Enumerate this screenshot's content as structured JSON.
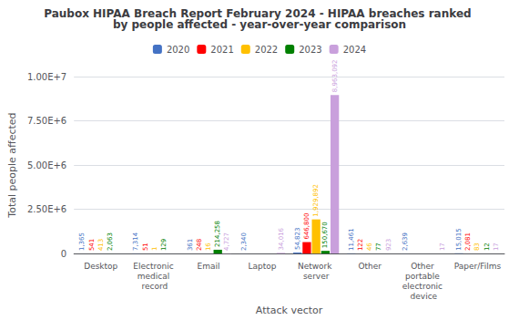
{
  "chart_data": {
    "type": "bar",
    "title": "Paubox HIPAA Breach Report February 2024 - HIPAA breaches ranked by people affected - year-over-year comparison",
    "xlabel": "Attack vector",
    "ylabel": "Total people affected",
    "categories": [
      "Desktop",
      "Electronic medical record",
      "Email",
      "Laptop",
      "Network server",
      "Other",
      "Other portable electronic device",
      "Paper/Films"
    ],
    "series": [
      {
        "name": "2020",
        "color": "#4472C4",
        "values": [
          1365,
          7314,
          361,
          2340,
          54823,
          11461,
          2639,
          15015
        ],
        "value_labels": [
          "1,365",
          "7,314",
          "361",
          "2,340",
          "54,823",
          "11,461",
          "2,639",
          "15,015"
        ]
      },
      {
        "name": "2021",
        "color": "#FF0000",
        "values": [
          541,
          51,
          248,
          0,
          646800,
          122,
          0,
          2081
        ],
        "value_labels": [
          "541",
          "51",
          "248",
          null,
          "646,800",
          "122",
          null,
          "2,081"
        ]
      },
      {
        "name": "2022",
        "color": "#FFC000",
        "values": [
          413,
          1,
          16,
          0,
          1929892,
          46,
          0,
          83
        ],
        "value_labels": [
          "413",
          "1",
          "16",
          null,
          "1,929,892",
          "46",
          null,
          "83"
        ]
      },
      {
        "name": "2023",
        "color": "#008000",
        "values": [
          2063,
          129,
          214258,
          0,
          150670,
          77,
          0,
          12
        ],
        "value_labels": [
          "2,063",
          "129",
          "214,258",
          null,
          "150,670",
          "77",
          null,
          "12"
        ]
      },
      {
        "name": "2024",
        "color": "#C9A0DC",
        "values": [
          0,
          0,
          4727,
          34016,
          8963092,
          923,
          17,
          17
        ],
        "value_labels": [
          null,
          null,
          "4,727",
          "34,016",
          "8,963,092",
          "923",
          "17",
          "17"
        ]
      }
    ],
    "ylim": [
      0,
      10000000
    ],
    "yticks": [
      0,
      {
        "value": 2500000,
        "label": "2.50E+6"
      },
      {
        "value": 5000000,
        "label": "5.00E+6"
      },
      {
        "value": 7500000,
        "label": "7.50E+6"
      },
      {
        "value": 10000000,
        "label": "1.00E+7"
      }
    ],
    "grid": true,
    "legend": "top",
    "data_labels": true
  }
}
